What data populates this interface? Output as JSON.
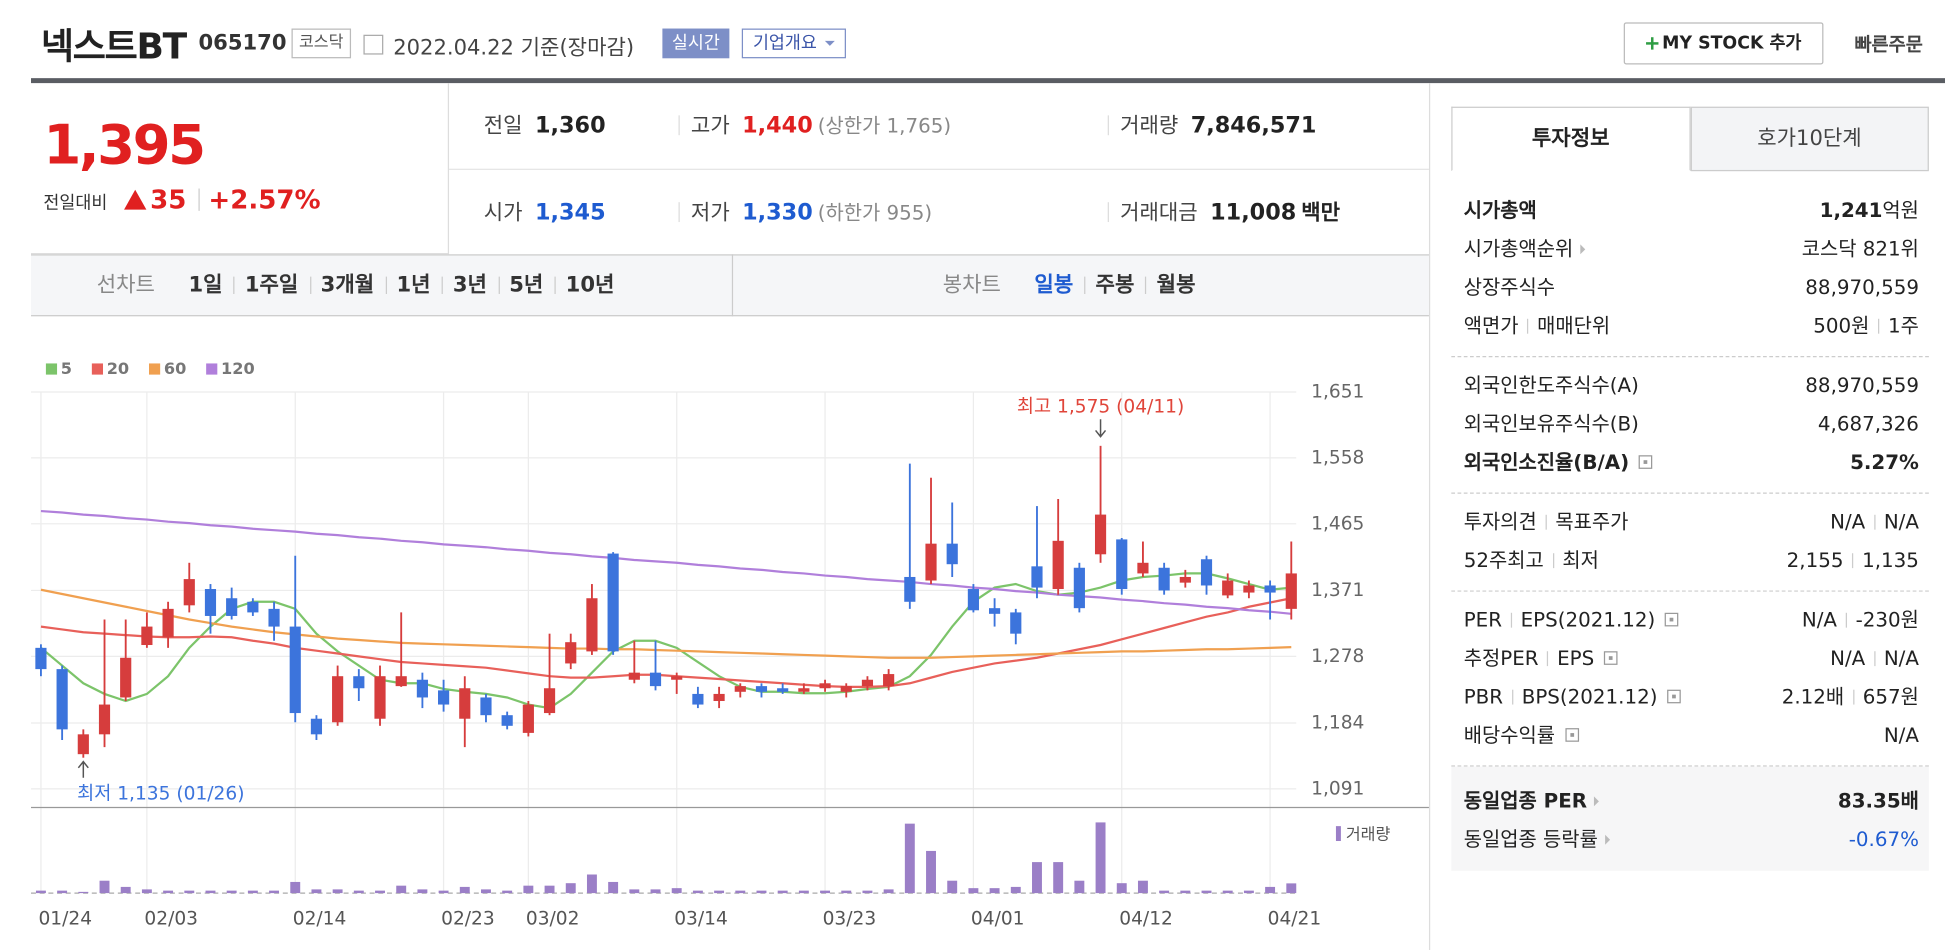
{
  "header": {
    "name": "넥스트BT",
    "code": "065170",
    "market": "코스닥",
    "date": "2022.04.22 기준(장마감)",
    "realtime": "실시간",
    "overview": "기업개요",
    "mystock": "MY STOCK 추가",
    "quick": "빠른주문"
  },
  "price": {
    "current": "1,395",
    "change_label": "전일대비",
    "change": "35",
    "change_pct": "+2.57%"
  },
  "summary": [
    [
      {
        "label": "전일",
        "value": "1,360"
      },
      {
        "label": "고가",
        "value": "1,440",
        "note": "(상한가 1,765)",
        "color": "#e02020"
      },
      {
        "label": "거래량",
        "value": "7,846,571"
      }
    ],
    [
      {
        "label": "시가",
        "value": "1,345",
        "color": "#1e5bd0"
      },
      {
        "label": "저가",
        "value": "1,330",
        "note": "(하한가 955)",
        "color": "#1e5bd0"
      },
      {
        "label": "거래대금",
        "value": "11,008",
        "unit": "백만"
      }
    ]
  ],
  "tabs": {
    "line_label": "선차트",
    "line": [
      "1일",
      "1주일",
      "3개월",
      "1년",
      "3년",
      "5년",
      "10년"
    ],
    "candle_label": "봉차트",
    "candle": [
      "일봉",
      "주봉",
      "월봉"
    ]
  },
  "chart_data": {
    "type": "candlestick",
    "categories": [
      "01/24",
      null,
      null,
      null,
      null,
      "02/03",
      null,
      null,
      null,
      null,
      null,
      null,
      "02/14",
      null,
      null,
      null,
      null,
      null,
      null,
      "02/23",
      null,
      null,
      null,
      "03/02",
      null,
      null,
      null,
      null,
      null,
      null,
      "03/14",
      null,
      null,
      null,
      null,
      null,
      null,
      "03/23",
      null,
      null,
      null,
      null,
      null,
      null,
      "04/01",
      null,
      null,
      null,
      null,
      null,
      null,
      "04/12",
      null,
      null,
      null,
      null,
      null,
      null,
      "04/21",
      null
    ],
    "open": [
      1290,
      1260,
      1140,
      1168,
      1220,
      1294,
      1305,
      1350,
      1373,
      1360,
      1355,
      1345,
      1320,
      1190,
      1185,
      1250,
      1190,
      1236,
      1245,
      1230,
      1190,
      1220,
      1195,
      1170,
      1198,
      1268,
      1285,
      1423,
      1245,
      1255,
      1245,
      1225,
      1215,
      1228,
      1236,
      1233,
      1228,
      1233,
      1228,
      1236,
      1236,
      1390,
      1385,
      1437,
      1373,
      1346,
      1340,
      1405,
      1373,
      1403,
      1422,
      1443,
      1395,
      1403,
      1382,
      1415,
      1364,
      1368,
      1378,
      1345
    ],
    "high": [
      1295,
      1265,
      1175,
      1330,
      1330,
      1340,
      1355,
      1410,
      1380,
      1375,
      1360,
      1355,
      1420,
      1195,
      1265,
      1260,
      1265,
      1340,
      1255,
      1245,
      1250,
      1225,
      1200,
      1215,
      1310,
      1310,
      1380,
      1425,
      1300,
      1300,
      1255,
      1235,
      1235,
      1240,
      1240,
      1240,
      1240,
      1245,
      1240,
      1250,
      1260,
      1550,
      1530,
      1495,
      1380,
      1360,
      1345,
      1490,
      1500,
      1410,
      1575,
      1445,
      1440,
      1410,
      1400,
      1420,
      1395,
      1385,
      1385,
      1440
    ],
    "low": [
      1250,
      1160,
      1135,
      1150,
      1215,
      1290,
      1290,
      1340,
      1310,
      1330,
      1335,
      1300,
      1185,
      1160,
      1180,
      1215,
      1180,
      1235,
      1205,
      1200,
      1150,
      1185,
      1175,
      1165,
      1195,
      1260,
      1280,
      1280,
      1240,
      1230,
      1225,
      1205,
      1205,
      1220,
      1220,
      1225,
      1225,
      1228,
      1220,
      1230,
      1230,
      1345,
      1380,
      1390,
      1340,
      1320,
      1295,
      1360,
      1365,
      1340,
      1410,
      1365,
      1390,
      1365,
      1375,
      1365,
      1360,
      1360,
      1330,
      1330
    ],
    "close": [
      1260,
      1175,
      1168,
      1210,
      1276,
      1320,
      1345,
      1387,
      1335,
      1335,
      1340,
      1320,
      1198,
      1168,
      1250,
      1233,
      1250,
      1250,
      1220,
      1210,
      1233,
      1195,
      1180,
      1210,
      1233,
      1298,
      1360,
      1285,
      1255,
      1236,
      1250,
      1210,
      1225,
      1236,
      1228,
      1228,
      1233,
      1240,
      1236,
      1245,
      1253,
      1355,
      1437,
      1408,
      1343,
      1338,
      1310,
      1375,
      1441,
      1346,
      1478,
      1373,
      1410,
      1371,
      1390,
      1378,
      1385,
      1378,
      1368,
      1395
    ],
    "up_color": "#d63d3d",
    "down_color": "#3c74dc",
    "series": [
      {
        "name": "5",
        "color": "#7cc46a",
        "values": [
          1290,
          1265,
          1240,
          1225,
          1215,
          1225,
          1250,
          1290,
          1320,
          1345,
          1355,
          1355,
          1345,
          1310,
          1285,
          1265,
          1245,
          1240,
          1240,
          1232,
          1228,
          1225,
          1220,
          1210,
          1205,
          1225,
          1255,
          1285,
          1300,
          1300,
          1290,
          1270,
          1250,
          1235,
          1228,
          1228,
          1226,
          1226,
          1228,
          1232,
          1235,
          1250,
          1280,
          1320,
          1355,
          1375,
          1380,
          1370,
          1365,
          1368,
          1375,
          1385,
          1390,
          1392,
          1395,
          1395,
          1388,
          1380,
          1372,
          1375
        ]
      },
      {
        "name": "20",
        "color": "#e8605a",
        "values": [
          1320,
          1316,
          1312,
          1310,
          1308,
          1306,
          1305,
          1305,
          1306,
          1305,
          1300,
          1296,
          1290,
          1286,
          1282,
          1278,
          1274,
          1270,
          1268,
          1266,
          1264,
          1262,
          1258,
          1254,
          1250,
          1248,
          1248,
          1250,
          1252,
          1252,
          1250,
          1248,
          1246,
          1244,
          1242,
          1240,
          1238,
          1236,
          1235,
          1235,
          1236,
          1240,
          1248,
          1256,
          1262,
          1268,
          1272,
          1276,
          1282,
          1288,
          1294,
          1302,
          1310,
          1318,
          1326,
          1334,
          1340,
          1348,
          1354,
          1360
        ]
      },
      {
        "name": "60",
        "color": "#f0a050",
        "values": [
          1372,
          1366,
          1360,
          1354,
          1348,
          1342,
          1336,
          1330,
          1325,
          1320,
          1316,
          1312,
          1309,
          1306,
          1303,
          1301,
          1299,
          1297,
          1296,
          1295,
          1294,
          1293,
          1292,
          1291,
          1290,
          1289,
          1289,
          1288,
          1288,
          1287,
          1286,
          1285,
          1284,
          1283,
          1282,
          1281,
          1280,
          1279,
          1278,
          1277,
          1276,
          1276,
          1276,
          1277,
          1278,
          1279,
          1280,
          1281,
          1282,
          1283,
          1284,
          1285,
          1285,
          1286,
          1287,
          1288,
          1288,
          1289,
          1290,
          1291
        ]
      },
      {
        "name": "120",
        "color": "#b07fdb",
        "values": [
          1483,
          1481,
          1478,
          1476,
          1473,
          1471,
          1468,
          1466,
          1463,
          1461,
          1458,
          1456,
          1454,
          1451,
          1449,
          1446,
          1444,
          1441,
          1439,
          1436,
          1434,
          1432,
          1429,
          1427,
          1424,
          1422,
          1419,
          1417,
          1414,
          1412,
          1410,
          1407,
          1405,
          1402,
          1400,
          1397,
          1395,
          1392,
          1390,
          1387,
          1385,
          1383,
          1380,
          1378,
          1375,
          1373,
          1370,
          1368,
          1365,
          1363,
          1361,
          1358,
          1356,
          1353,
          1351,
          1348,
          1346,
          1343,
          1341,
          1338
        ]
      }
    ],
    "volume_label": "거래량",
    "volume_color": "#9b7fc7",
    "volume": [
      2000000,
      2000000,
      1000000,
      10000000,
      5000000,
      3000000,
      2000000,
      2000000,
      2000000,
      2000000,
      2000000,
      2000000,
      9000000,
      3000000,
      3000000,
      2000000,
      2000000,
      6000000,
      3000000,
      2000000,
      5000000,
      3000000,
      2000000,
      6000000,
      6000000,
      8000000,
      15000000,
      9000000,
      3000000,
      3000000,
      4000000,
      2000000,
      2000000,
      2000000,
      2000000,
      2000000,
      2000000,
      2000000,
      2000000,
      2000000,
      3000000,
      56000000,
      34000000,
      10000000,
      4000000,
      4000000,
      5000000,
      25000000,
      25000000,
      10000000,
      57000000,
      8000000,
      10000000,
      2000000,
      2000000,
      2000000,
      2000000,
      2000000,
      5000000,
      7846571
    ],
    "ylim": [
      1067,
      1651
    ],
    "yticks": [
      {
        "value": 1091,
        "label": "1,091"
      },
      {
        "value": 1184,
        "label": "1,184"
      },
      {
        "value": 1278,
        "label": "1,278"
      },
      {
        "value": 1371,
        "label": "1,371"
      },
      {
        "value": 1465,
        "label": "1,465"
      },
      {
        "value": 1558,
        "label": "1,558"
      },
      {
        "value": 1651,
        "label": "1,651"
      }
    ],
    "grid": true,
    "annotations": {
      "high": "최고 1,575 (04/11)",
      "low": "최저 1,135 (01/26)"
    }
  },
  "info": {
    "tabs": [
      "투자정보",
      "호가10단계"
    ],
    "groups": [
      [
        {
          "label": [
            "시가총액"
          ],
          "value": [
            "1,241"
          ],
          "unit": "억원",
          "bold": true
        },
        {
          "label": [
            "시가총액순위"
          ],
          "arrow": true,
          "value": [
            "코스닥 821위"
          ]
        },
        {
          "label": [
            "상장주식수"
          ],
          "value": [
            "88,970,559"
          ]
        },
        {
          "label": [
            "액면가",
            "매매단위"
          ],
          "value": [
            "500원",
            "1주"
          ]
        }
      ],
      [
        {
          "label": [
            "외국인한도주식수(A)"
          ],
          "value": [
            "88,970,559"
          ]
        },
        {
          "label": [
            "외국인보유주식수(B)"
          ],
          "value": [
            "4,687,326"
          ]
        },
        {
          "label": [
            "외국인소진율(B/A)"
          ],
          "help": true,
          "value": [
            "5.27%"
          ],
          "bold": true
        }
      ],
      [
        {
          "label": [
            "투자의견",
            "목표주가"
          ],
          "value": [
            "N/A",
            "N/A"
          ]
        },
        {
          "label": [
            "52주최고",
            "최저"
          ],
          "value": [
            "2,155",
            "1,135"
          ]
        }
      ],
      [
        {
          "label": [
            "PER",
            "EPS(2021.12)"
          ],
          "help": true,
          "value": [
            "N/A",
            "-230원"
          ]
        },
        {
          "label": [
            "추정PER",
            "EPS"
          ],
          "help": true,
          "value": [
            "N/A",
            "N/A"
          ]
        },
        {
          "label": [
            "PBR",
            "BPS(2021.12)"
          ],
          "help": true,
          "value": [
            "2.12배",
            "657원"
          ]
        },
        {
          "label": [
            "배당수익률"
          ],
          "help": true,
          "value": [
            "N/A"
          ]
        }
      ],
      [
        {
          "label": [
            "동일업종 PER"
          ],
          "arrow": true,
          "value": [
            "83.35배"
          ],
          "bold": true
        },
        {
          "label": [
            "동일업종 등락률"
          ],
          "arrow": true,
          "value": [
            "-0.67%"
          ],
          "color": "#1e5bd0"
        }
      ]
    ]
  }
}
